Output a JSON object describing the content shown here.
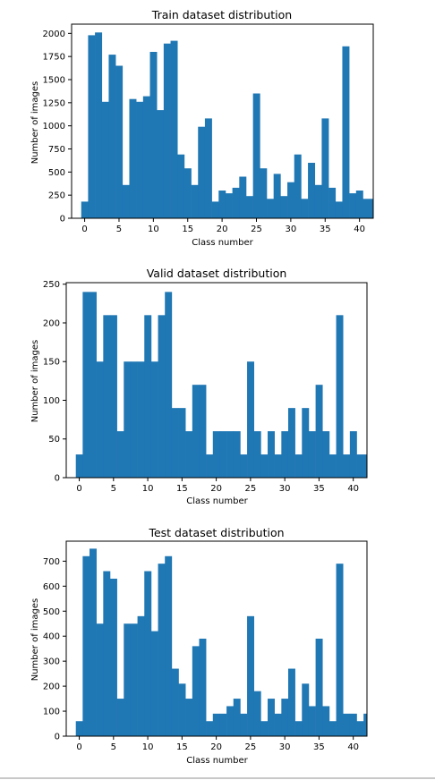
{
  "chart_data": [
    {
      "type": "bar",
      "title": "Train dataset distribution",
      "xlabel": "Class number",
      "ylabel": "Number of images",
      "xlim": [
        -1.9,
        42
      ],
      "ylim": [
        0,
        2100
      ],
      "xticks": [
        0,
        5,
        10,
        15,
        20,
        25,
        30,
        35,
        40
      ],
      "yticks": [
        0,
        250,
        500,
        750,
        1000,
        1250,
        1500,
        1750,
        2000
      ],
      "categories": [
        0,
        1,
        2,
        3,
        4,
        5,
        6,
        7,
        8,
        9,
        10,
        11,
        12,
        13,
        14,
        15,
        16,
        17,
        18,
        19,
        20,
        21,
        22,
        23,
        24,
        25,
        26,
        27,
        28,
        29,
        30,
        31,
        32,
        33,
        34,
        35,
        36,
        37,
        38,
        39,
        40,
        41,
        42
      ],
      "values": [
        180,
        1980,
        2010,
        1260,
        1770,
        1650,
        360,
        1290,
        1260,
        1320,
        1800,
        1170,
        1890,
        1920,
        690,
        540,
        360,
        990,
        1080,
        180,
        300,
        270,
        330,
        450,
        240,
        1350,
        540,
        210,
        480,
        240,
        390,
        690,
        210,
        600,
        360,
        1080,
        330,
        180,
        1860,
        270,
        300,
        210,
        210
      ],
      "color": "#1f77b4",
      "grid": false
    },
    {
      "type": "bar",
      "title": "Valid dataset distribution",
      "xlabel": "Class number",
      "ylabel": "Number of images",
      "xlim": [
        -1.9,
        42
      ],
      "ylim": [
        0,
        252
      ],
      "xticks": [
        0,
        5,
        10,
        15,
        20,
        25,
        30,
        35,
        40
      ],
      "yticks": [
        0,
        50,
        100,
        150,
        200,
        250
      ],
      "categories": [
        0,
        1,
        2,
        3,
        4,
        5,
        6,
        7,
        8,
        9,
        10,
        11,
        12,
        13,
        14,
        15,
        16,
        17,
        18,
        19,
        20,
        21,
        22,
        23,
        24,
        25,
        26,
        27,
        28,
        29,
        30,
        31,
        32,
        33,
        34,
        35,
        36,
        37,
        38,
        39,
        40,
        41,
        42
      ],
      "values": [
        30,
        240,
        240,
        150,
        210,
        210,
        60,
        150,
        150,
        150,
        210,
        150,
        210,
        240,
        90,
        90,
        60,
        120,
        120,
        30,
        60,
        60,
        60,
        60,
        30,
        150,
        60,
        30,
        60,
        30,
        60,
        90,
        30,
        90,
        60,
        120,
        60,
        30,
        210,
        30,
        60,
        30,
        30
      ],
      "color": "#1f77b4",
      "grid": false
    },
    {
      "type": "bar",
      "title": "Test dataset distribution",
      "xlabel": "Class number",
      "ylabel": "Number of images",
      "xlim": [
        -1.9,
        42
      ],
      "ylim": [
        0,
        780
      ],
      "xticks": [
        0,
        5,
        10,
        15,
        20,
        25,
        30,
        35,
        40
      ],
      "yticks": [
        0,
        100,
        200,
        300,
        400,
        500,
        600,
        700
      ],
      "categories": [
        0,
        1,
        2,
        3,
        4,
        5,
        6,
        7,
        8,
        9,
        10,
        11,
        12,
        13,
        14,
        15,
        16,
        17,
        18,
        19,
        20,
        21,
        22,
        23,
        24,
        25,
        26,
        27,
        28,
        29,
        30,
        31,
        32,
        33,
        34,
        35,
        36,
        37,
        38,
        39,
        40,
        41,
        42
      ],
      "values": [
        60,
        720,
        750,
        450,
        660,
        630,
        150,
        450,
        450,
        480,
        660,
        420,
        690,
        720,
        270,
        210,
        150,
        360,
        390,
        60,
        90,
        90,
        120,
        150,
        90,
        480,
        180,
        60,
        150,
        90,
        150,
        270,
        60,
        210,
        120,
        390,
        120,
        60,
        690,
        90,
        90,
        60,
        90
      ],
      "color": "#1f77b4",
      "grid": false
    }
  ]
}
